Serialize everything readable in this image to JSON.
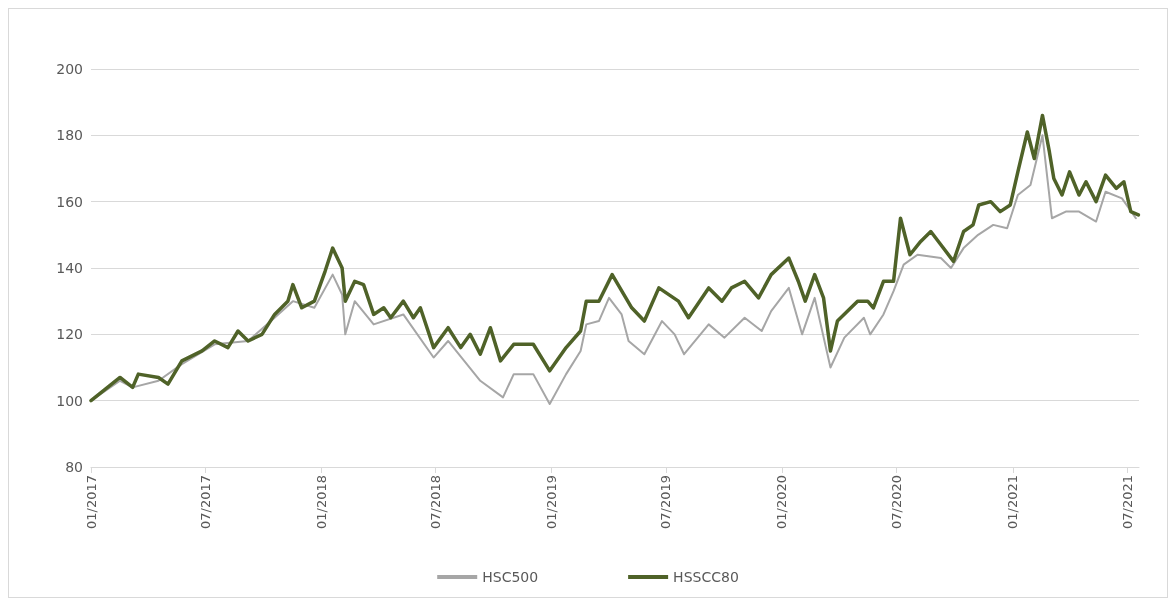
{
  "chart_data": {
    "type": "line",
    "xlim": [
      "2017-01-01",
      "2021-07-20"
    ],
    "xticks": [
      {
        "value": "2017-01-01",
        "label": "01/2017"
      },
      {
        "value": "2017-07-01",
        "label": "07/2017"
      },
      {
        "value": "2018-01-01",
        "label": "01/2018"
      },
      {
        "value": "2018-07-01",
        "label": "07/2018"
      },
      {
        "value": "2019-01-01",
        "label": "01/2019"
      },
      {
        "value": "2019-07-01",
        "label": "07/2019"
      },
      {
        "value": "2020-01-01",
        "label": "01/2020"
      },
      {
        "value": "2020-07-01",
        "label": "07/2020"
      },
      {
        "value": "2021-01-01",
        "label": "01/2021"
      },
      {
        "value": "2021-07-01",
        "label": "07/2021"
      }
    ],
    "ylim": [
      80,
      200
    ],
    "yticks": [
      80,
      100,
      120,
      140,
      160,
      180,
      200
    ],
    "grid": "y",
    "legend": "bottom",
    "marker": "none",
    "line_style": "solid",
    "series": [
      {
        "name": "HSC500",
        "color": "#a6a6a6",
        "x": [
          "2017-01-01",
          "2017-02-16",
          "2017-03-08",
          "2017-04-18",
          "2017-05-25",
          "2017-07-16",
          "2017-09-07",
          "2017-10-19",
          "2017-11-17",
          "2017-12-21",
          "2018-01-19",
          "2018-02-03",
          "2018-02-08",
          "2018-02-23",
          "2018-03-25",
          "2018-05-11",
          "2018-06-28",
          "2018-07-21",
          "2018-09-10",
          "2018-10-16",
          "2018-11-02",
          "2018-12-03",
          "2018-12-29",
          "2019-01-24",
          "2019-02-16",
          "2019-02-25",
          "2019-03-17",
          "2019-04-02",
          "2019-04-22",
          "2019-05-03",
          "2019-05-28",
          "2019-06-25",
          "2019-07-15",
          "2019-07-30",
          "2019-09-07",
          "2019-10-02",
          "2019-11-03",
          "2019-11-30",
          "2019-12-15",
          "2020-01-12",
          "2020-02-02",
          "2020-02-22",
          "2020-03-18",
          "2020-04-09",
          "2020-05-10",
          "2020-05-20",
          "2020-06-10",
          "2020-06-26",
          "2020-07-12",
          "2020-08-03",
          "2020-09-09",
          "2020-09-25",
          "2020-10-15",
          "2020-11-07",
          "2020-12-01",
          "2020-12-23",
          "2021-01-09",
          "2021-01-29",
          "2021-02-17",
          "2021-03-04",
          "2021-03-26",
          "2021-04-16",
          "2021-05-13",
          "2021-05-28",
          "2021-06-23",
          "2021-07-15"
        ],
        "values": [
          100,
          106,
          104,
          106,
          111,
          117,
          118,
          125,
          130,
          128,
          138,
          132,
          120,
          130,
          123,
          126,
          113,
          118,
          106,
          101,
          108,
          108,
          99,
          108,
          115,
          123,
          124,
          131,
          126,
          118,
          114,
          124,
          120,
          114,
          123,
          119,
          125,
          121,
          127,
          134,
          120,
          131,
          110,
          119,
          125,
          120,
          126,
          133,
          141,
          144,
          143,
          140,
          146,
          150,
          153,
          152,
          162,
          165,
          180,
          155,
          157,
          157,
          154,
          163,
          161,
          155
        ]
      },
      {
        "name": "HSSCC80",
        "color": "#4f6228",
        "x": [
          "2017-01-01",
          "2017-02-16",
          "2017-03-08",
          "2017-03-17",
          "2017-04-18",
          "2017-05-03",
          "2017-05-25",
          "2017-06-26",
          "2017-07-16",
          "2017-08-06",
          "2017-08-22",
          "2017-09-07",
          "2017-09-29",
          "2017-10-19",
          "2017-11-09",
          "2017-11-17",
          "2017-12-01",
          "2017-12-21",
          "2018-01-07",
          "2018-01-19",
          "2018-02-03",
          "2018-02-08",
          "2018-02-23",
          "2018-03-09",
          "2018-03-25",
          "2018-04-10",
          "2018-04-21",
          "2018-05-11",
          "2018-05-27",
          "2018-06-07",
          "2018-06-28",
          "2018-07-21",
          "2018-08-10",
          "2018-08-25",
          "2018-09-10",
          "2018-09-26",
          "2018-10-12",
          "2018-11-02",
          "2018-12-03",
          "2018-12-29",
          "2019-01-24",
          "2019-02-16",
          "2019-02-25",
          "2019-03-17",
          "2019-04-07",
          "2019-05-08",
          "2019-05-28",
          "2019-06-20",
          "2019-07-21",
          "2019-08-06",
          "2019-09-07",
          "2019-09-28",
          "2019-10-13",
          "2019-11-03",
          "2019-11-25",
          "2019-12-15",
          "2020-01-12",
          "2020-01-27",
          "2020-02-07",
          "2020-02-22",
          "2020-03-07",
          "2020-03-18",
          "2020-03-29",
          "2020-04-30",
          "2020-05-16",
          "2020-05-25",
          "2020-06-10",
          "2020-06-26",
          "2020-07-07",
          "2020-07-22",
          "2020-08-08",
          "2020-08-24",
          "2020-09-09",
          "2020-09-29",
          "2020-10-15",
          "2020-10-30",
          "2020-11-08",
          "2020-11-27",
          "2020-12-12",
          "2020-12-28",
          "2021-01-09",
          "2021-01-24",
          "2021-02-04",
          "2021-02-17",
          "2021-02-28",
          "2021-03-07",
          "2021-03-20",
          "2021-04-01",
          "2021-04-16",
          "2021-04-27",
          "2021-05-13",
          "2021-05-28",
          "2021-06-14",
          "2021-06-26",
          "2021-07-07",
          "2021-07-19"
        ],
        "values": [
          100,
          107,
          104,
          108,
          107,
          105,
          112,
          115,
          118,
          116,
          121,
          118,
          120,
          126,
          130,
          135,
          128,
          130,
          139,
          146,
          140,
          130,
          136,
          135,
          126,
          128,
          125,
          130,
          125,
          128,
          116,
          122,
          116,
          120,
          114,
          122,
          112,
          117,
          117,
          109,
          116,
          121,
          130,
          130,
          138,
          128,
          124,
          134,
          130,
          125,
          134,
          130,
          134,
          136,
          131,
          138,
          143,
          136,
          130,
          138,
          131,
          115,
          124,
          130,
          130,
          128,
          136,
          136,
          155,
          144,
          148,
          151,
          147,
          142,
          151,
          153,
          159,
          160,
          157,
          159,
          169,
          181,
          173,
          186,
          175,
          167,
          162,
          169,
          162,
          166,
          160,
          168,
          164,
          166,
          157,
          156
        ]
      }
    ]
  }
}
